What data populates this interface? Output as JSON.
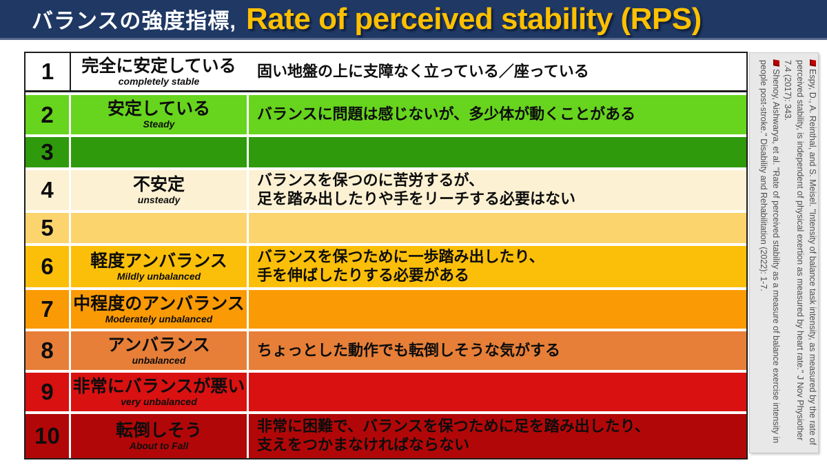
{
  "header": {
    "title_jp": "バランスの強度指標,",
    "title_en": "Rate of perceived stability (RPS)",
    "bg_color": "#1f3864",
    "accent_color": "#ffc000"
  },
  "scale_table": {
    "rows": [
      {
        "score": "1",
        "label_jp": "完全に安定している",
        "label_en": "completely stable",
        "description": "固い地盤の上に支障なく立っている／座っている",
        "row_color": "#ffffff"
      },
      {
        "score": "2",
        "label_jp": "安定している",
        "label_en": "Steady",
        "description": "バランスに問題は感じないが、多少体が動くことがある",
        "row_color": "#67d41e"
      },
      {
        "score": "3",
        "label_jp": "",
        "label_en": "",
        "description": "",
        "row_color": "#2f9a0c"
      },
      {
        "score": "4",
        "label_jp": "不安定",
        "label_en": "unsteady",
        "description": "バランスを保つのに苦労するが、\n足を踏み出したりや手をリーチする必要はない",
        "row_color": "#fcf1d3"
      },
      {
        "score": "5",
        "label_jp": "",
        "label_en": "",
        "description": "",
        "row_color": "#fcd46e"
      },
      {
        "score": "6",
        "label_jp": "軽度アンバランス",
        "label_en": "Mildly unbalanced",
        "description": "バランスを保つために一歩踏み出したり、\n手を伸ばしたりする必要がある",
        "row_color": "#fcbf09"
      },
      {
        "score": "7",
        "label_jp": "中程度のアンバランス",
        "label_en": "Moderately unbalanced",
        "description": "",
        "row_color": "#fa9a04"
      },
      {
        "score": "8",
        "label_jp": "アンバランス",
        "label_en": "unbalanced",
        "description": "ちょっとした動作でも転倒しそうな気がする",
        "row_color": "#e77f38"
      },
      {
        "score": "9",
        "label_jp": "非常にバランスが悪い",
        "label_en": "very unbalanced",
        "description": "",
        "row_color": "#d91111"
      },
      {
        "score": "10",
        "label_jp": "転倒しそう",
        "label_en": "About to Fall",
        "description": "非常に困難で、バランスを保つために足を踏み出したり、\n支えをつかまなければならない",
        "row_color": "#b20708"
      }
    ]
  },
  "citations": {
    "bullet_color": "#c00000",
    "items": [
      "Espy, D., A. Reinthal, and S. Meisel. \"Intensity of balance task intensity, as measured by the rate of perceived stability, is independent of physical exertion as measured by heart rate.\" J Nov Physiother 7.4 (2017): 343.",
      "Shenoy, Aishwarya, et al. \"Rate of perceived stability as a measure of balance exercise intensity in people post-stroke.\" Disability and Rehabilitation (2022): 1-7."
    ]
  }
}
